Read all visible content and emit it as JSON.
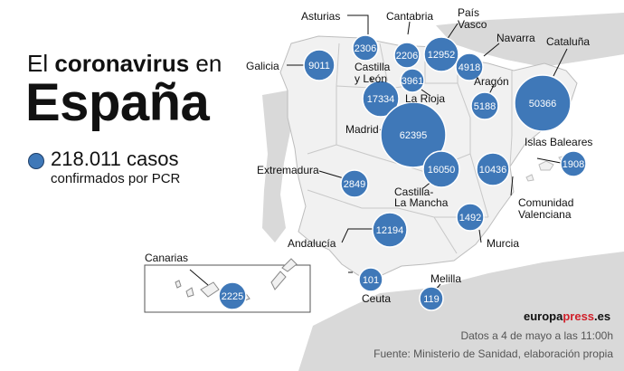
{
  "headline": {
    "prefix": "El",
    "emphasis": "coronavirus",
    "suffix": "en",
    "country": "España"
  },
  "total": {
    "value": "218.011",
    "unit": "casos",
    "subtitle": "confirmados por PCR"
  },
  "marker_color": "#3f78b8",
  "inset_title": "Canarias",
  "regions": [
    {
      "name": "Galicia",
      "cases": 9011
    },
    {
      "name": "Asturias",
      "cases": 2306
    },
    {
      "name": "Cantabria",
      "cases": 2206
    },
    {
      "name": "País Vasco",
      "cases": 12952
    },
    {
      "name": "Navarra",
      "cases": 4918
    },
    {
      "name": "Cataluña",
      "cases": 50366
    },
    {
      "name": "Castilla y León",
      "cases": 17334
    },
    {
      "name": "La Rioja",
      "cases": 3961
    },
    {
      "name": "Aragón",
      "cases": 5188
    },
    {
      "name": "Madrid",
      "cases": 62395
    },
    {
      "name": "Castilla-La Mancha",
      "cases": 16050
    },
    {
      "name": "Extremadura",
      "cases": 2849
    },
    {
      "name": "Comunidad Valenciana",
      "cases": 10436
    },
    {
      "name": "Islas Baleares",
      "cases": 1908
    },
    {
      "name": "Murcia",
      "cases": 1492
    },
    {
      "name": "Andalucía",
      "cases": 12194
    },
    {
      "name": "Ceuta",
      "cases": 101
    },
    {
      "name": "Melilla",
      "cases": 119
    },
    {
      "name": "Canarias",
      "cases": 2225
    }
  ],
  "brand": {
    "part1": "europa",
    "part2": "press",
    "part3": ".es"
  },
  "footnote": {
    "date": "Datos a 4 de mayo a las 11:00h",
    "source": "Fuente: Ministerio de Sanidad, elaboración propia"
  }
}
